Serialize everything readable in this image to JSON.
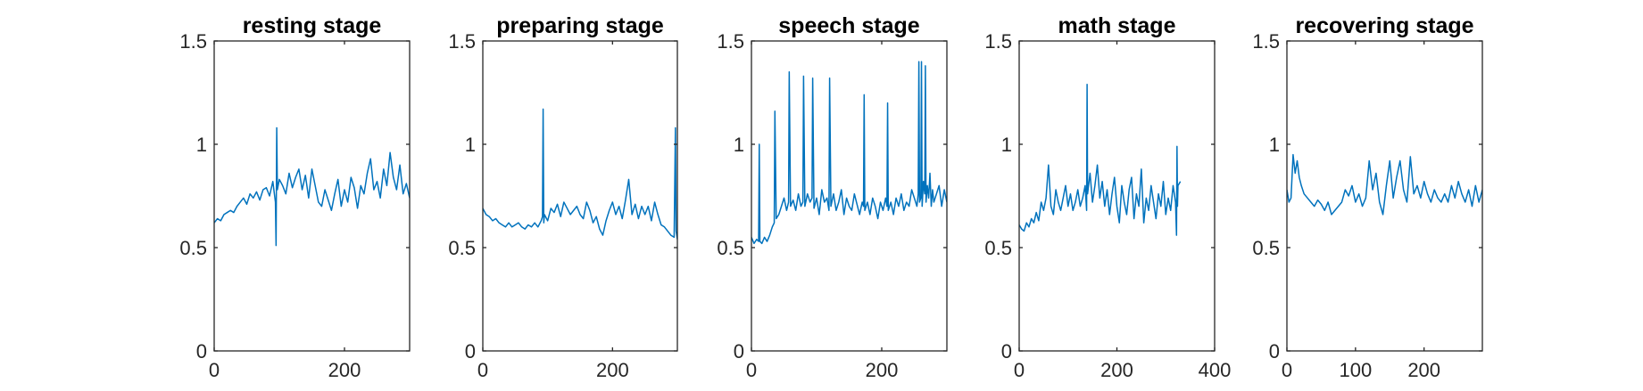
{
  "chart_data": [
    {
      "type": "line",
      "title": "resting stage",
      "xlim": [
        0,
        300
      ],
      "ylim": [
        0,
        1.5
      ],
      "xticks": [
        0,
        200
      ],
      "xtick_labels": [
        "0",
        "200"
      ],
      "yticks": [
        0,
        0.5,
        1,
        1.5
      ],
      "ytick_labels": [
        "0",
        "0.5",
        "1",
        "1.5"
      ],
      "series": [
        {
          "color": "#0072BD",
          "x": [
            0,
            5,
            10,
            15,
            20,
            25,
            30,
            35,
            40,
            45,
            50,
            55,
            60,
            65,
            70,
            75,
            80,
            85,
            90,
            94,
            95,
            96,
            97,
            100,
            105,
            110,
            115,
            120,
            125,
            130,
            135,
            140,
            145,
            150,
            155,
            160,
            165,
            170,
            175,
            180,
            185,
            190,
            195,
            200,
            205,
            210,
            215,
            220,
            225,
            230,
            235,
            240,
            245,
            250,
            255,
            260,
            265,
            270,
            275,
            280,
            285,
            290,
            295,
            300
          ],
          "y": [
            0.62,
            0.64,
            0.63,
            0.66,
            0.67,
            0.68,
            0.67,
            0.7,
            0.72,
            0.74,
            0.71,
            0.76,
            0.74,
            0.77,
            0.73,
            0.78,
            0.79,
            0.75,
            0.82,
            0.72,
            0.51,
            1.08,
            0.78,
            0.83,
            0.8,
            0.76,
            0.86,
            0.79,
            0.84,
            0.88,
            0.78,
            0.85,
            0.74,
            0.88,
            0.8,
            0.72,
            0.7,
            0.78,
            0.73,
            0.68,
            0.76,
            0.83,
            0.7,
            0.78,
            0.72,
            0.84,
            0.79,
            0.69,
            0.8,
            0.76,
            0.86,
            0.93,
            0.78,
            0.82,
            0.74,
            0.88,
            0.8,
            0.96,
            0.84,
            0.78,
            0.9,
            0.76,
            0.81,
            0.74
          ]
        }
      ]
    },
    {
      "type": "line",
      "title": "preparing stage",
      "xlim": [
        0,
        300
      ],
      "ylim": [
        0,
        1.5
      ],
      "xticks": [
        0,
        200
      ],
      "xtick_labels": [
        "0",
        "200"
      ],
      "yticks": [
        0,
        0.5,
        1,
        1.5
      ],
      "ytick_labels": [
        "0",
        "0.5",
        "1",
        "1.5"
      ],
      "series": [
        {
          "color": "#0072BD",
          "x": [
            0,
            5,
            10,
            15,
            20,
            25,
            30,
            35,
            40,
            45,
            50,
            55,
            60,
            65,
            70,
            75,
            80,
            85,
            90,
            92,
            93,
            94,
            95,
            100,
            105,
            110,
            115,
            120,
            125,
            130,
            135,
            140,
            145,
            150,
            155,
            160,
            165,
            170,
            175,
            180,
            185,
            190,
            195,
            200,
            205,
            210,
            215,
            220,
            225,
            230,
            235,
            240,
            245,
            250,
            255,
            260,
            265,
            270,
            275,
            280,
            285,
            290,
            295,
            297,
            298,
            300
          ],
          "y": [
            0.69,
            0.66,
            0.65,
            0.63,
            0.64,
            0.62,
            0.61,
            0.6,
            0.62,
            0.6,
            0.61,
            0.62,
            0.6,
            0.59,
            0.61,
            0.6,
            0.62,
            0.6,
            0.63,
            0.65,
            1.17,
            0.62,
            0.66,
            0.63,
            0.69,
            0.67,
            0.71,
            0.65,
            0.72,
            0.69,
            0.66,
            0.68,
            0.7,
            0.66,
            0.64,
            0.72,
            0.68,
            0.62,
            0.65,
            0.59,
            0.56,
            0.63,
            0.68,
            0.72,
            0.66,
            0.7,
            0.64,
            0.73,
            0.83,
            0.66,
            0.71,
            0.64,
            0.7,
            0.66,
            0.7,
            0.63,
            0.72,
            0.66,
            0.61,
            0.6,
            0.58,
            0.56,
            0.55,
            1.08,
            0.58,
            0.54
          ]
        }
      ]
    },
    {
      "type": "line",
      "title": "speech stage",
      "xlim": [
        0,
        300
      ],
      "ylim": [
        0,
        1.5
      ],
      "xticks": [
        0,
        200
      ],
      "xtick_labels": [
        "0",
        "200"
      ],
      "yticks": [
        0,
        0.5,
        1,
        1.5
      ],
      "ytick_labels": [
        "0",
        "0.5",
        "1",
        "1.5"
      ],
      "series": [
        {
          "color": "#0072BD",
          "x": [
            0,
            4,
            8,
            11,
            12,
            13,
            16,
            20,
            24,
            28,
            32,
            35,
            36,
            38,
            42,
            46,
            50,
            54,
            57,
            58,
            60,
            64,
            68,
            72,
            76,
            79,
            80,
            82,
            86,
            90,
            93,
            94,
            96,
            100,
            104,
            108,
            112,
            116,
            119,
            120,
            122,
            126,
            130,
            134,
            138,
            142,
            146,
            150,
            154,
            158,
            162,
            166,
            170,
            172,
            173,
            174,
            178,
            182,
            186,
            190,
            194,
            198,
            202,
            206,
            208,
            209,
            210,
            214,
            218,
            222,
            226,
            230,
            234,
            238,
            242,
            246,
            250,
            254,
            256,
            257,
            258,
            260,
            261,
            262,
            264,
            266,
            267,
            268,
            270,
            272,
            274,
            276,
            278,
            280,
            284,
            288,
            292,
            296,
            300
          ],
          "y": [
            0.55,
            0.52,
            0.54,
            0.53,
            1.0,
            0.53,
            0.52,
            0.55,
            0.53,
            0.56,
            0.6,
            0.62,
            1.16,
            0.64,
            0.66,
            0.7,
            0.74,
            0.68,
            0.72,
            1.35,
            0.7,
            0.73,
            0.68,
            0.76,
            0.7,
            0.72,
            1.33,
            0.7,
            0.76,
            0.72,
            0.74,
            1.32,
            0.69,
            0.74,
            0.66,
            0.78,
            0.72,
            0.74,
            0.68,
            1.32,
            0.7,
            0.76,
            0.68,
            0.72,
            0.78,
            0.66,
            0.74,
            0.7,
            0.68,
            0.76,
            0.71,
            0.66,
            0.72,
            0.7,
            1.24,
            0.68,
            0.72,
            0.66,
            0.74,
            0.7,
            0.64,
            0.72,
            0.68,
            0.74,
            0.7,
            1.2,
            0.68,
            0.72,
            0.66,
            0.74,
            0.7,
            0.76,
            0.68,
            0.72,
            0.7,
            0.78,
            0.74,
            0.7,
            0.76,
            1.4,
            0.72,
            0.74,
            1.4,
            0.7,
            0.82,
            0.76,
            1.38,
            0.72,
            0.8,
            0.74,
            0.86,
            0.7,
            0.78,
            0.72,
            0.76,
            0.8,
            0.7,
            0.78,
            0.72
          ]
        }
      ]
    },
    {
      "type": "line",
      "title": "math stage",
      "xlim": [
        0,
        400
      ],
      "ylim": [
        0,
        1.5
      ],
      "xticks": [
        0,
        200,
        400
      ],
      "xtick_labels": [
        "0",
        "200",
        "400"
      ],
      "yticks": [
        0,
        0.5,
        1,
        1.5
      ],
      "ytick_labels": [
        "0",
        "0.5",
        "1",
        "1.5"
      ],
      "series": [
        {
          "color": "#0072BD",
          "x": [
            0,
            5,
            10,
            15,
            20,
            25,
            30,
            35,
            40,
            45,
            50,
            55,
            60,
            65,
            70,
            75,
            80,
            85,
            90,
            95,
            100,
            105,
            110,
            115,
            120,
            125,
            130,
            135,
            138,
            139,
            140,
            145,
            150,
            155,
            160,
            165,
            170,
            175,
            180,
            185,
            190,
            195,
            200,
            205,
            210,
            215,
            220,
            225,
            230,
            235,
            240,
            245,
            250,
            255,
            260,
            265,
            270,
            275,
            280,
            285,
            290,
            295,
            300,
            305,
            310,
            315,
            320,
            322,
            323,
            324,
            325,
            330
          ],
          "y": [
            0.61,
            0.59,
            0.58,
            0.62,
            0.6,
            0.64,
            0.62,
            0.67,
            0.63,
            0.72,
            0.68,
            0.74,
            0.9,
            0.7,
            0.66,
            0.78,
            0.72,
            0.68,
            0.74,
            0.8,
            0.7,
            0.76,
            0.68,
            0.72,
            0.78,
            0.7,
            0.74,
            0.8,
            0.68,
            1.29,
            0.76,
            0.86,
            0.72,
            0.8,
            0.9,
            0.74,
            0.82,
            0.7,
            0.78,
            0.66,
            0.76,
            0.84,
            0.7,
            0.62,
            0.8,
            0.72,
            0.66,
            0.78,
            0.84,
            0.64,
            0.76,
            0.7,
            0.88,
            0.62,
            0.74,
            0.68,
            0.8,
            0.72,
            0.64,
            0.76,
            0.7,
            0.82,
            0.66,
            0.74,
            0.68,
            0.8,
            0.72,
            0.56,
            0.99,
            0.7,
            0.8,
            0.82
          ]
        }
      ]
    },
    {
      "type": "line",
      "title": "recovering stage",
      "xlim": [
        0,
        285
      ],
      "ylim": [
        0,
        1.5
      ],
      "xticks": [
        0,
        100,
        200
      ],
      "xtick_labels": [
        "0",
        "100",
        "200"
      ],
      "yticks": [
        0,
        0.5,
        1,
        1.5
      ],
      "ytick_labels": [
        "0",
        "0.5",
        "1",
        "1.5"
      ],
      "series": [
        {
          "color": "#0072BD",
          "x": [
            0,
            3,
            6,
            9,
            12,
            15,
            18,
            21,
            25,
            30,
            35,
            40,
            45,
            50,
            55,
            60,
            65,
            70,
            75,
            80,
            85,
            90,
            95,
            100,
            105,
            110,
            115,
            120,
            125,
            130,
            135,
            140,
            145,
            150,
            155,
            160,
            165,
            170,
            175,
            180,
            185,
            190,
            195,
            200,
            205,
            210,
            215,
            220,
            225,
            230,
            235,
            240,
            245,
            250,
            255,
            260,
            265,
            270,
            275,
            280,
            285
          ],
          "y": [
            0.78,
            0.72,
            0.74,
            0.95,
            0.86,
            0.92,
            0.84,
            0.8,
            0.76,
            0.74,
            0.72,
            0.7,
            0.73,
            0.71,
            0.68,
            0.72,
            0.66,
            0.68,
            0.7,
            0.72,
            0.78,
            0.75,
            0.8,
            0.72,
            0.76,
            0.7,
            0.74,
            0.92,
            0.78,
            0.86,
            0.72,
            0.66,
            0.8,
            0.92,
            0.74,
            0.84,
            0.92,
            0.78,
            0.72,
            0.94,
            0.76,
            0.8,
            0.74,
            0.82,
            0.76,
            0.72,
            0.78,
            0.74,
            0.72,
            0.76,
            0.72,
            0.8,
            0.74,
            0.82,
            0.76,
            0.72,
            0.78,
            0.7,
            0.8,
            0.72,
            0.78
          ]
        }
      ]
    }
  ]
}
